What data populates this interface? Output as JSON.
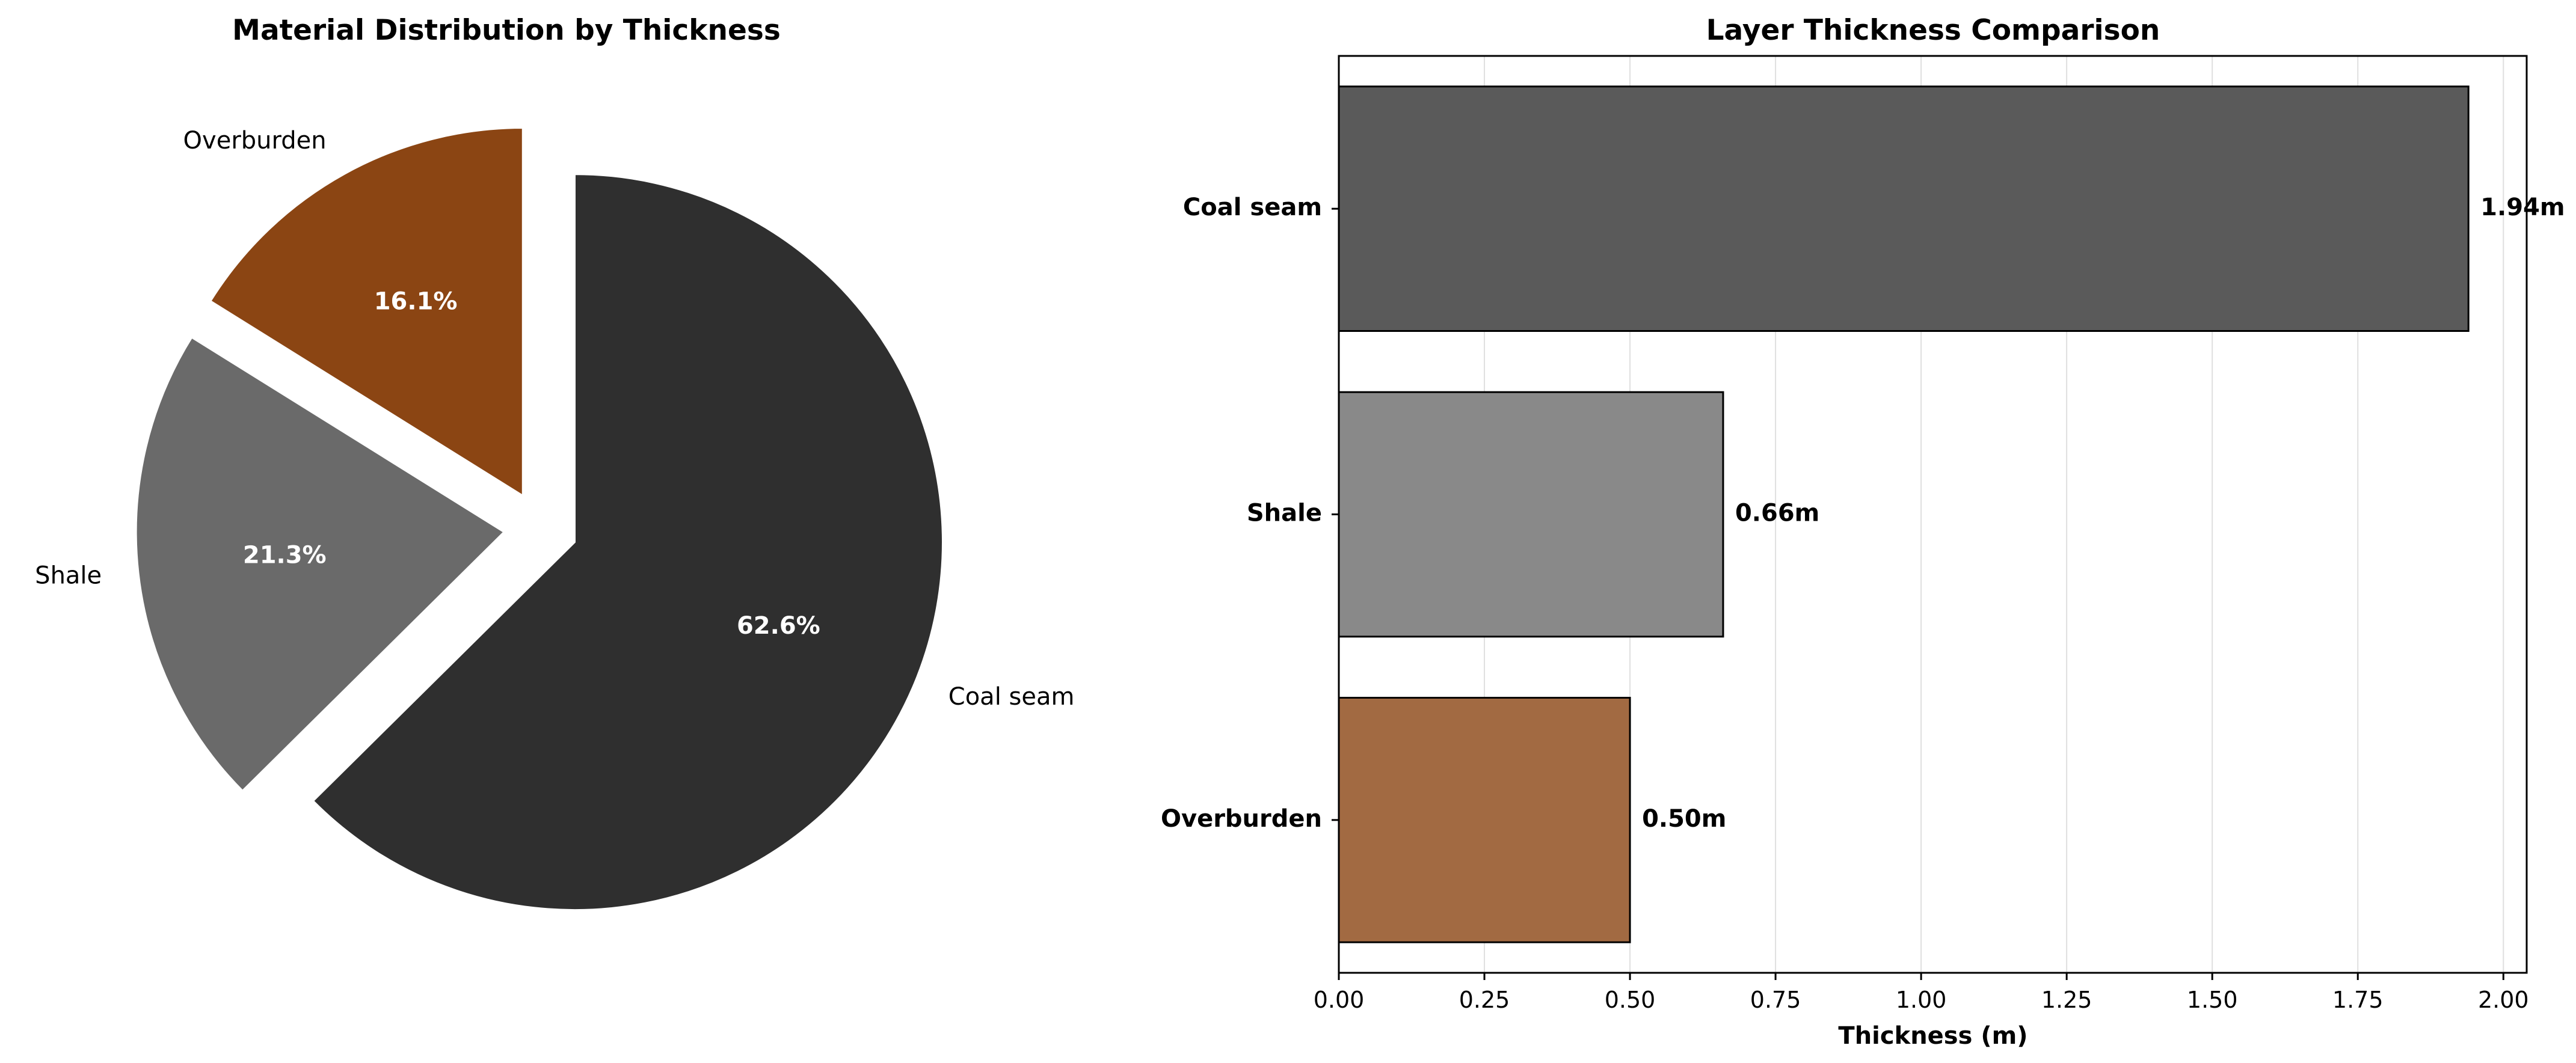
{
  "chart_data": [
    {
      "type": "pie",
      "title": "Material Distribution by Thickness",
      "slices": [
        {
          "label": "Coal seam",
          "value": 1.94,
          "pct_label": "62.6%",
          "color": "#2f2f2f"
        },
        {
          "label": "Shale",
          "value": 0.66,
          "pct_label": "21.3%",
          "color": "#6a6a6a"
        },
        {
          "label": "Overburden",
          "value": 0.5,
          "pct_label": "16.1%",
          "color": "#8b4513"
        }
      ],
      "explode": true
    },
    {
      "type": "bar",
      "orientation": "horizontal",
      "title": "Layer Thickness Comparison",
      "categories": [
        "Coal seam",
        "Shale",
        "Overburden"
      ],
      "values": [
        1.94,
        0.66,
        0.5
      ],
      "value_labels": [
        "1.94m",
        "0.66m",
        "0.50m"
      ],
      "colors": [
        "#5a5a5a",
        "#898989",
        "#a26a42"
      ],
      "xlabel": "Thickness (m)",
      "xlim": [
        0,
        2.04
      ],
      "xticks": [
        0.0,
        0.25,
        0.5,
        0.75,
        1.0,
        1.25,
        1.5,
        1.75,
        2.0
      ],
      "xtick_labels": [
        "0.00",
        "0.25",
        "0.50",
        "0.75",
        "1.00",
        "1.25",
        "1.50",
        "1.75",
        "2.00"
      ],
      "grid": "x"
    }
  ]
}
